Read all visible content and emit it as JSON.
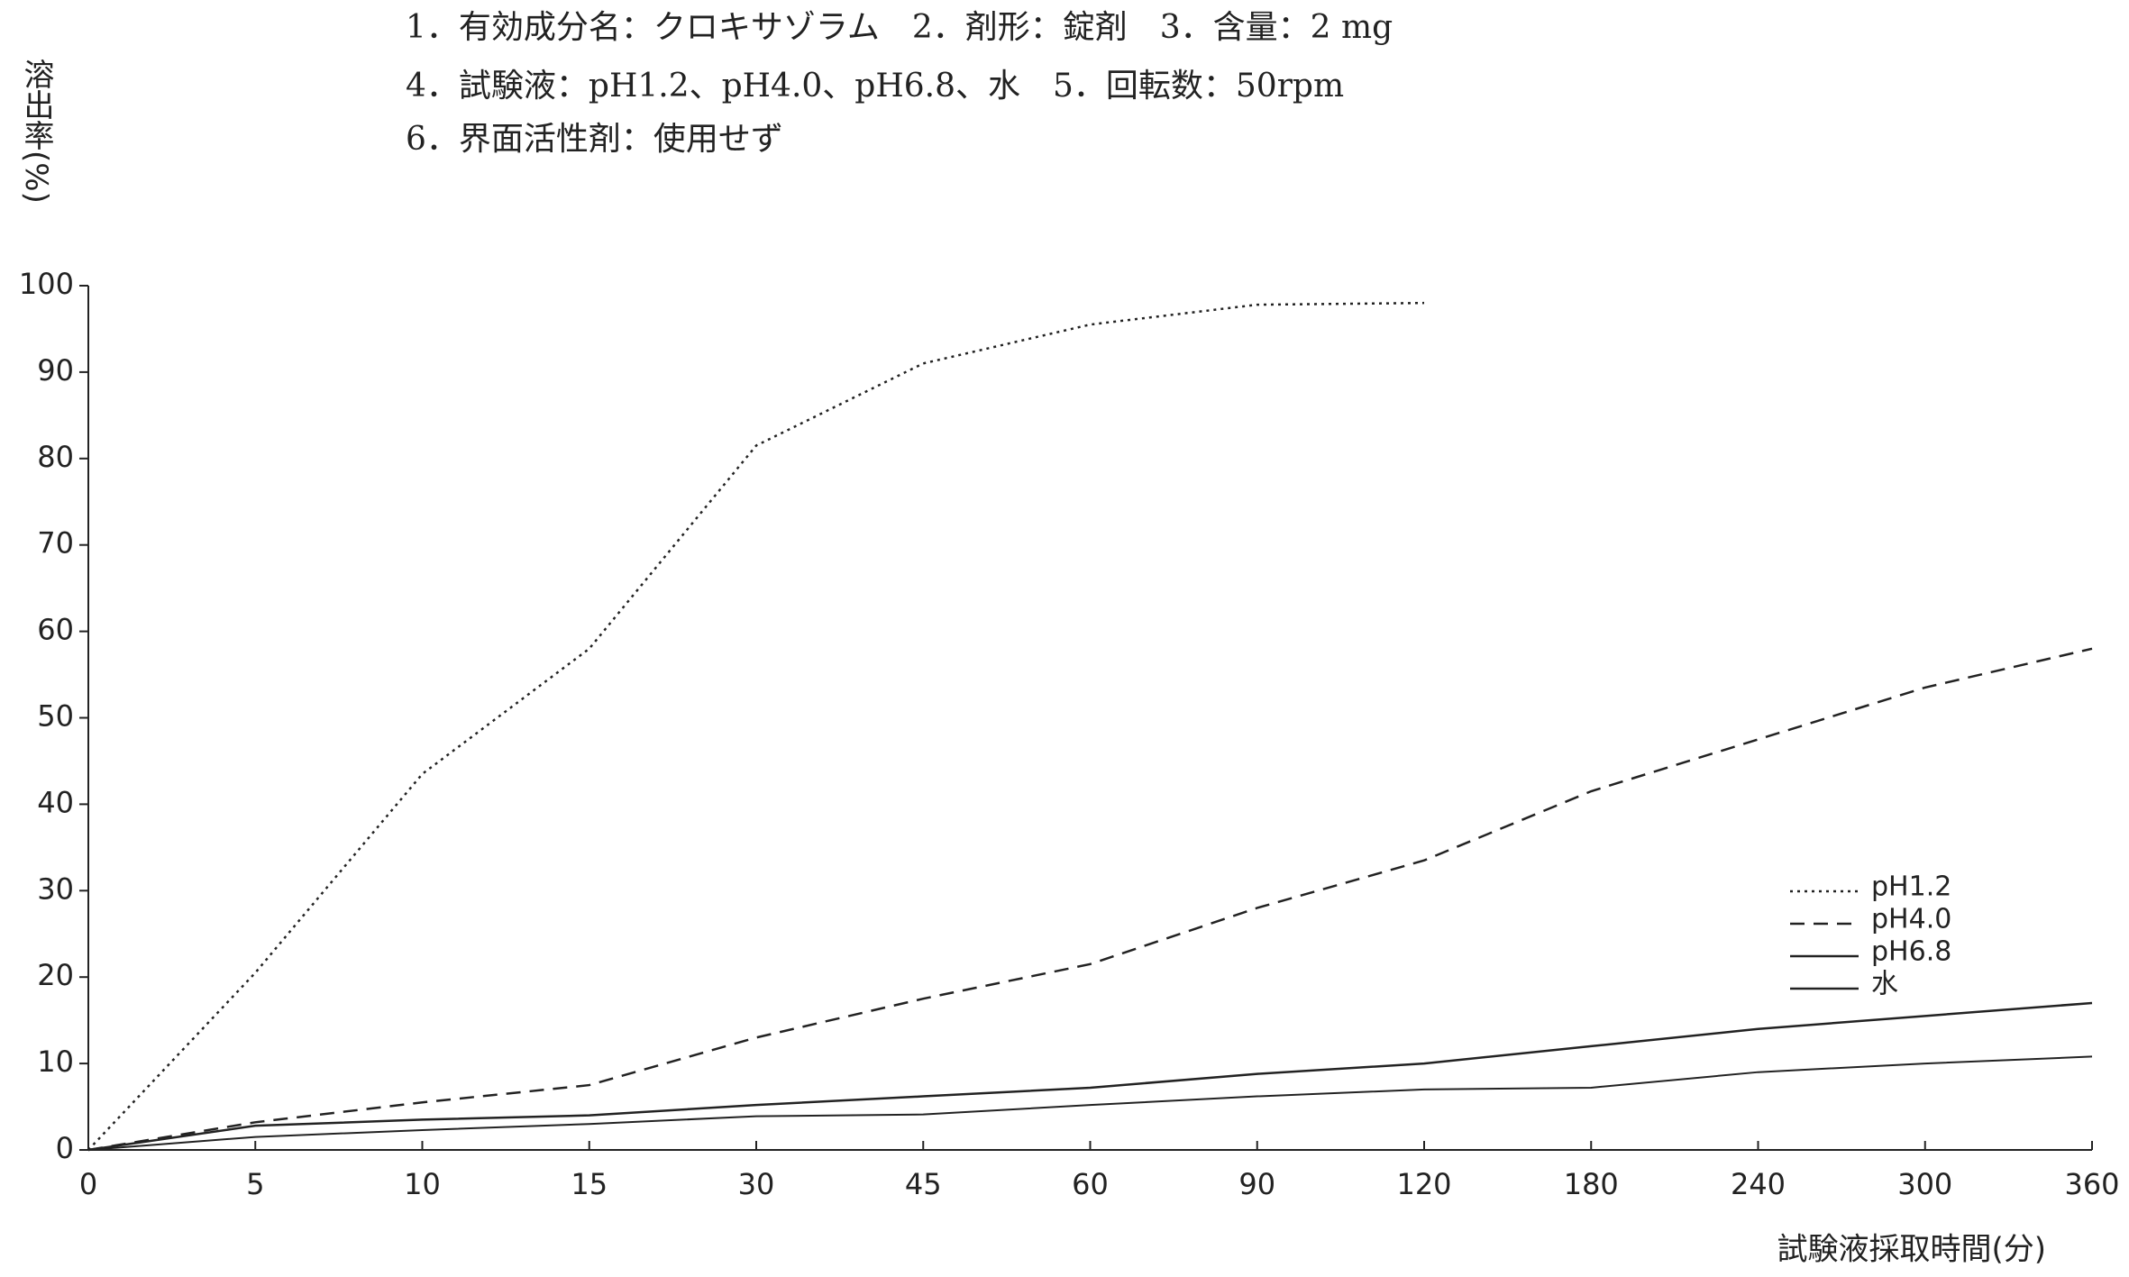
{
  "chart_data": {
    "type": "line",
    "title_lines": [
      "1．有効成分名：クロキサゾラム　2．剤形：錠剤　3．含量：2 mg",
      "4．試験液：pH1.2、pH4.0、pH6.8、水　5．回転数：50rpm",
      "6．界面活性剤：使用せず"
    ],
    "y_label": "溶出率(%)",
    "x_label": "試験液採取時間(分)",
    "categories": [
      "0",
      "5",
      "10",
      "15",
      "30",
      "45",
      "60",
      "90",
      "120",
      "180",
      "240",
      "300",
      "360"
    ],
    "series": [
      {
        "name": "pH1.2",
        "color": "#222222",
        "line_style": "dotted",
        "values": [
          0,
          20.5,
          43.5,
          58,
          81.5,
          91,
          95.5,
          97.8,
          98,
          null,
          null,
          null,
          null
        ]
      },
      {
        "name": "pH4.0",
        "color": "#222222",
        "line_style": "dashed",
        "values": [
          0,
          3.2,
          5.5,
          7.5,
          13,
          17.5,
          21.5,
          28,
          33.5,
          41.5,
          47.5,
          53.5,
          58
        ]
      },
      {
        "name": "pH6.8",
        "color": "#222222",
        "line_style": "solid",
        "values": [
          0,
          2.8,
          3.5,
          4,
          5.2,
          6.2,
          7.2,
          8.8,
          10,
          12,
          14,
          15.5,
          17
        ]
      },
      {
        "name": "水",
        "color": "#222222",
        "line_style": "solid",
        "values": [
          0,
          1.5,
          2.3,
          3,
          3.9,
          4.1,
          5.2,
          6.2,
          7,
          7.2,
          9,
          10,
          10.8
        ]
      }
    ],
    "ylim": [
      0,
      100
    ],
    "yticks": [
      0,
      10,
      20,
      30,
      40,
      50,
      60,
      70,
      80,
      90,
      100
    ],
    "grid": false,
    "legend": "right"
  }
}
